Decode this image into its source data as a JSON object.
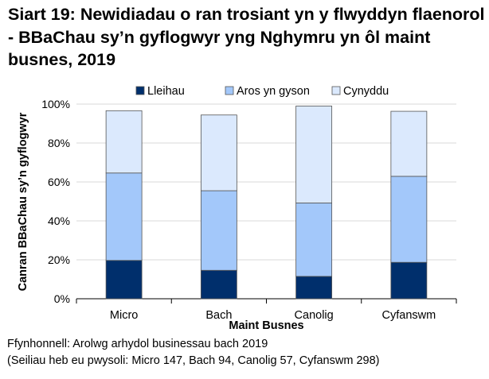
{
  "title": "Siart 19: Newidiadau o ran trosiant yn y flwyddyn flaenorol - BBaChau sy’n gyflogwyr yng Nghymru yn ôl maint busnes, 2019",
  "chart_data": {
    "type": "bar",
    "stacked": true,
    "title": "Siart 19: Newidiadau o ran trosiant yn y flwyddyn flaenorol - BBaChau sy’n gyflogwyr yng Nghymru yn ôl maint busnes, 2019",
    "xlabel": "Maint Busnes",
    "ylabel": "Canran BBaChau sy’n gyflogwyr",
    "categories": [
      "Micro",
      "Bach",
      "Canolig",
      "Cyfanswm"
    ],
    "ylim": [
      0,
      100
    ],
    "yticks": [
      "0%",
      "20%",
      "40%",
      "60%",
      "80%",
      "100%"
    ],
    "grid": true,
    "legend_position": "top",
    "series": [
      {
        "name": "Lleihau",
        "color": "#002f6c",
        "values": [
          19.7,
          14.6,
          11.5,
          18.7
        ]
      },
      {
        "name": "Aros yn gyson",
        "color": "#a3c8fa",
        "values": [
          44.9,
          40.9,
          37.7,
          44.2
        ]
      },
      {
        "name": "Cynyddu",
        "color": "#dbe9fd",
        "values": [
          32.0,
          38.9,
          49.8,
          33.4
        ]
      }
    ]
  },
  "footnotes": {
    "source": "Ffynhonnell: Arolwg arhydol businessau bach 2019",
    "bases": "(Seiliau heb eu pwysoli: Micro 147, Bach 94, Canolig 57, Cyfanswm 298)"
  }
}
